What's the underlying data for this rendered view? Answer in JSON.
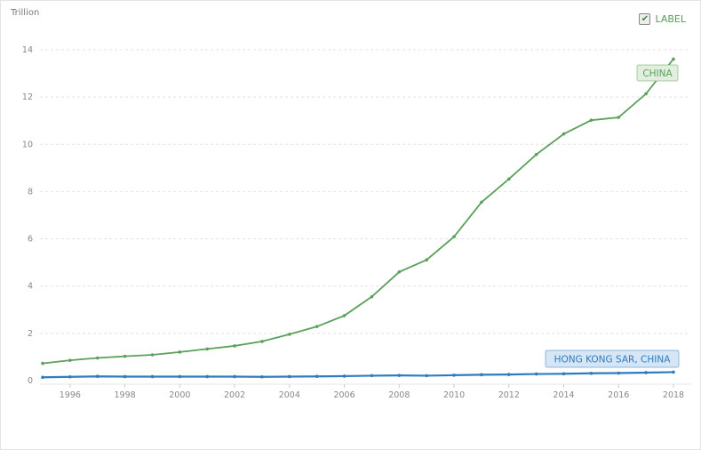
{
  "chart_data": {
    "type": "line",
    "title": "",
    "ylabel": "Trillion",
    "xlabel": "",
    "ylim": [
      0,
      14
    ],
    "yticks": [
      0,
      2,
      4,
      6,
      8,
      10,
      12,
      14
    ],
    "xticks": [
      1996,
      1998,
      2000,
      2002,
      2004,
      2006,
      2008,
      2010,
      2012,
      2014,
      2016,
      2018
    ],
    "x": [
      1995,
      1996,
      1997,
      1998,
      1999,
      2000,
      2001,
      2002,
      2003,
      2004,
      2005,
      2006,
      2007,
      2008,
      2009,
      2010,
      2011,
      2012,
      2013,
      2014,
      2015,
      2016,
      2017,
      2018
    ],
    "grid": true,
    "series": [
      {
        "name": "CHINA",
        "color": "#5ba05b",
        "label_bg": "#e2efdf",
        "values": [
          0.73,
          0.86,
          0.96,
          1.03,
          1.09,
          1.21,
          1.34,
          1.47,
          1.66,
          1.96,
          2.29,
          2.75,
          3.55,
          4.6,
          5.11,
          6.09,
          7.55,
          8.53,
          9.57,
          10.44,
          11.02,
          11.14,
          12.14,
          13.61
        ]
      },
      {
        "name": "HONG KONG SAR, CHINA",
        "color": "#2f7bbf",
        "label_bg": "#d6e6f4",
        "values": [
          0.14,
          0.16,
          0.18,
          0.17,
          0.17,
          0.17,
          0.17,
          0.17,
          0.16,
          0.17,
          0.18,
          0.19,
          0.21,
          0.22,
          0.21,
          0.23,
          0.25,
          0.26,
          0.28,
          0.29,
          0.31,
          0.32,
          0.34,
          0.36
        ]
      }
    ]
  },
  "legend": {
    "label_toggle": "LABEL",
    "checked": true
  }
}
